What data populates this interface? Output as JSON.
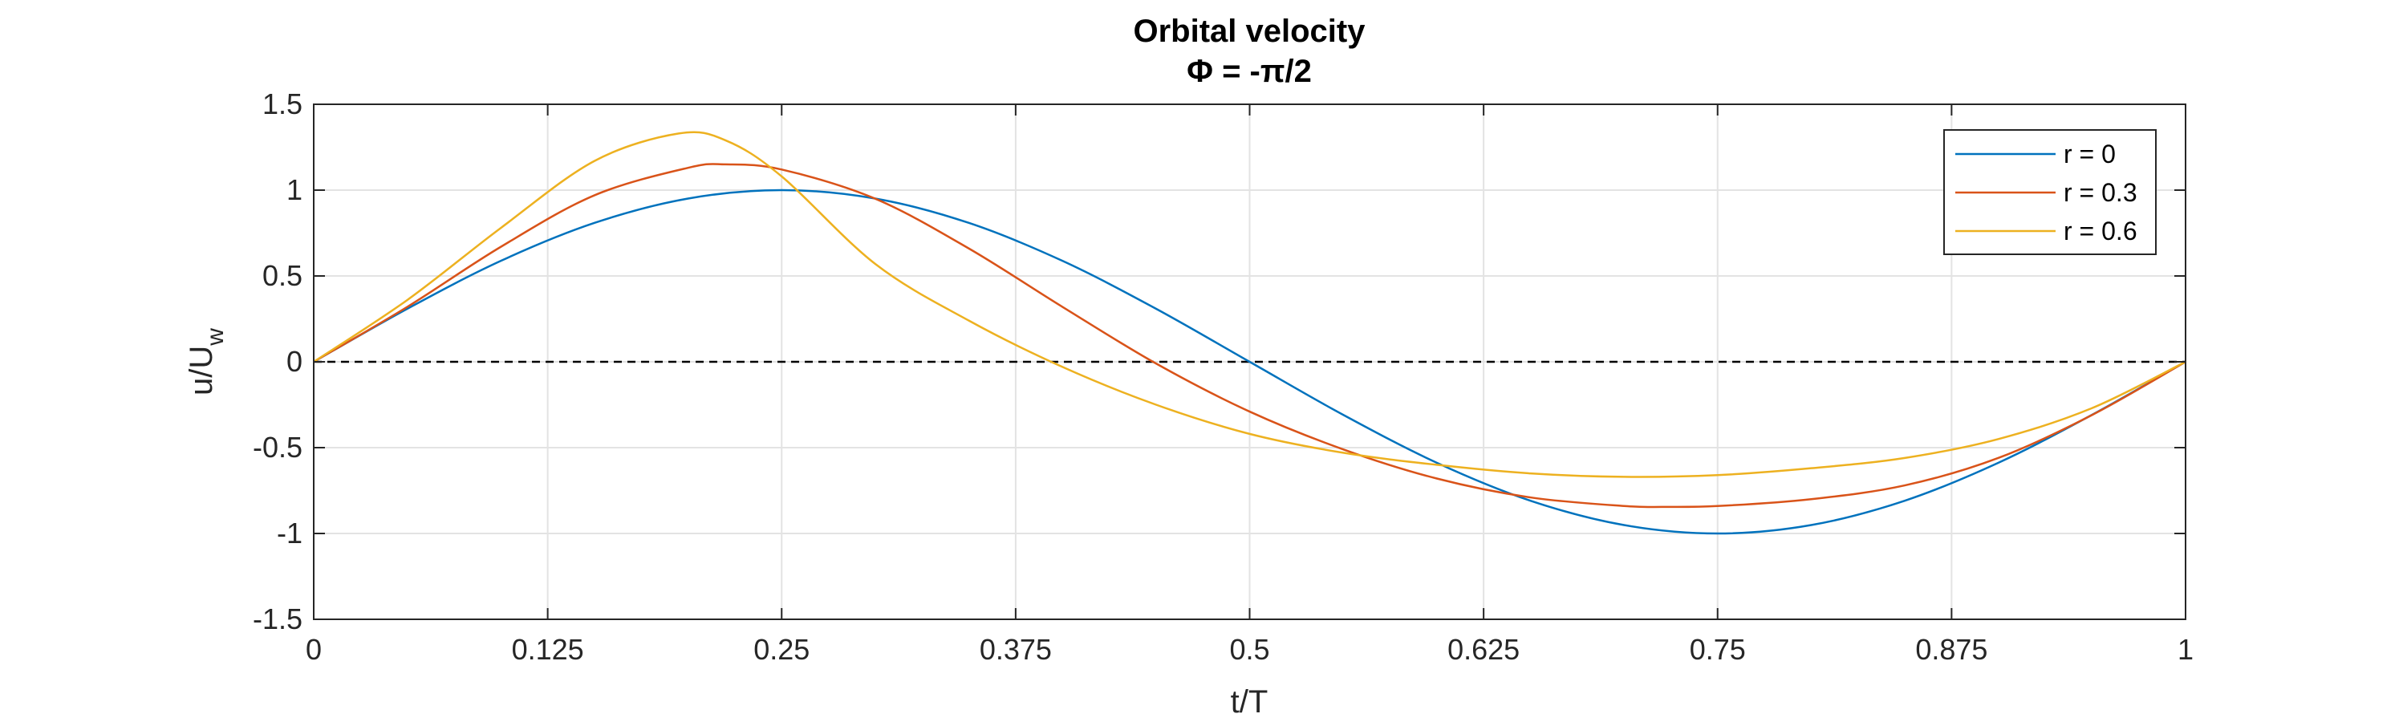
{
  "chart_data": {
    "type": "line",
    "title": "Orbital velocity",
    "subtitle": "Φ = -π/2",
    "xlabel": "t/T",
    "ylabel": "u/U",
    "ylabel_subscript": "w",
    "xlim": [
      0,
      1
    ],
    "ylim": [
      -1.5,
      1.5
    ],
    "xticks": [
      0,
      0.125,
      0.25,
      0.375,
      0.5,
      0.625,
      0.75,
      0.875,
      1
    ],
    "xtick_labels": [
      "0",
      "0.125",
      "0.25",
      "0.375",
      "0.5",
      "0.625",
      "0.75",
      "0.875",
      "1"
    ],
    "yticks": [
      -1.5,
      -1,
      -0.5,
      0,
      0.5,
      1,
      1.5
    ],
    "ytick_labels": [
      "-1.5",
      "-1",
      "-0.5",
      "0",
      "0.5",
      "1",
      "1.5"
    ],
    "grid": true,
    "legend_position": "top-right",
    "reference_line": {
      "y": 0,
      "style": "dashed",
      "color": "#000000"
    },
    "series": [
      {
        "name": "r = 0",
        "color": "#0072BD",
        "x": [
          0,
          0.05,
          0.1,
          0.15,
          0.2,
          0.25,
          0.3,
          0.35,
          0.4,
          0.45,
          0.5,
          0.55,
          0.6,
          0.65,
          0.7,
          0.75,
          0.8,
          0.85,
          0.9,
          0.95,
          1
        ],
        "y": [
          0,
          0.309,
          0.588,
          0.809,
          0.951,
          1.0,
          0.951,
          0.809,
          0.588,
          0.309,
          0,
          -0.309,
          -0.588,
          -0.809,
          -0.951,
          -1.0,
          -0.951,
          -0.809,
          -0.588,
          -0.309,
          0
        ]
      },
      {
        "name": "r = 0.3",
        "color": "#D95319",
        "x": [
          0,
          0.05,
          0.1,
          0.15,
          0.2,
          0.22,
          0.25,
          0.3,
          0.35,
          0.4,
          0.45,
          0.5,
          0.55,
          0.6,
          0.65,
          0.7,
          0.72,
          0.75,
          0.8,
          0.85,
          0.9,
          0.95,
          1
        ],
        "y": [
          0,
          0.32,
          0.67,
          0.97,
          1.13,
          1.15,
          1.12,
          0.95,
          0.66,
          0.32,
          -0.01,
          -0.29,
          -0.51,
          -0.68,
          -0.79,
          -0.84,
          -0.845,
          -0.84,
          -0.8,
          -0.72,
          -0.56,
          -0.31,
          0
        ]
      },
      {
        "name": "r = 0.6",
        "color": "#EDB120",
        "x": [
          0,
          0.05,
          0.1,
          0.15,
          0.195,
          0.22,
          0.25,
          0.3,
          0.35,
          0.4,
          0.45,
          0.5,
          0.55,
          0.6,
          0.65,
          0.7,
          0.75,
          0.8,
          0.85,
          0.9,
          0.95,
          1
        ],
        "y": [
          0,
          0.36,
          0.78,
          1.17,
          1.33,
          1.29,
          1.08,
          0.57,
          0.24,
          -0.03,
          -0.25,
          -0.42,
          -0.53,
          -0.6,
          -0.65,
          -0.67,
          -0.66,
          -0.62,
          -0.56,
          -0.45,
          -0.27,
          0
        ]
      }
    ]
  }
}
